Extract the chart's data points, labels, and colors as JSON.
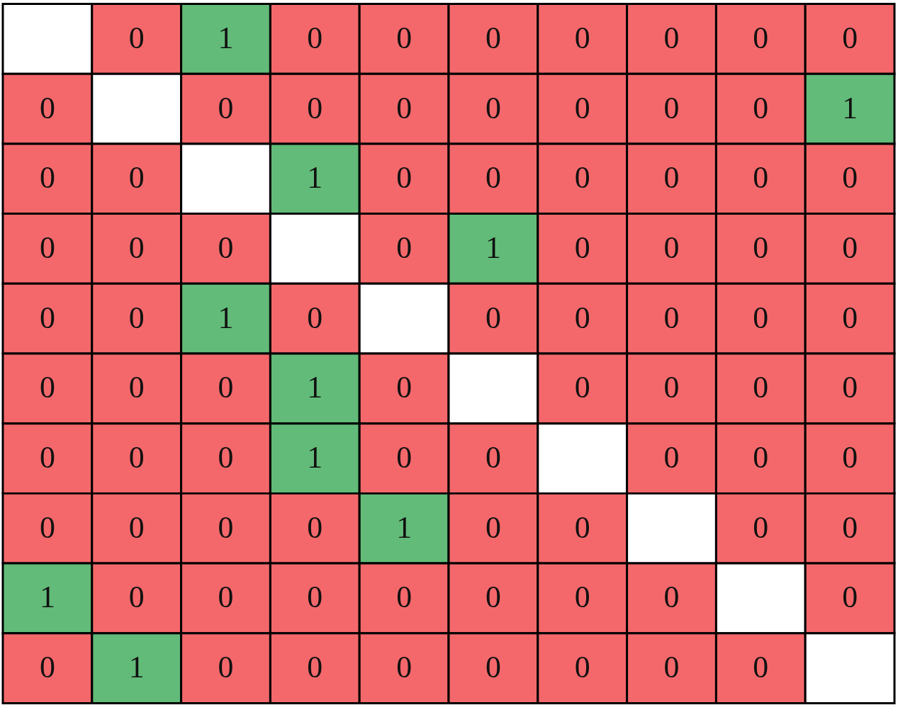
{
  "chart_data": {
    "type": "heatmap",
    "categories": [
      null,
      null,
      null,
      null,
      null,
      null,
      null,
      null,
      null,
      null
    ],
    "y_categories": [
      null,
      null,
      null,
      null,
      null,
      null,
      null,
      null,
      null,
      null
    ],
    "colors": [
      "#f4686b",
      "#62bb78"
    ],
    "data_labels": true,
    "cells": [
      [
        null,
        0,
        1,
        0,
        0,
        0,
        0,
        0,
        0,
        0
      ],
      [
        0,
        null,
        0,
        0,
        0,
        0,
        0,
        0,
        0,
        1
      ],
      [
        0,
        0,
        null,
        1,
        0,
        0,
        0,
        0,
        0,
        0
      ],
      [
        0,
        0,
        0,
        null,
        0,
        1,
        0,
        0,
        0,
        0
      ],
      [
        0,
        0,
        1,
        0,
        null,
        0,
        0,
        0,
        0,
        0
      ],
      [
        0,
        0,
        0,
        1,
        0,
        null,
        0,
        0,
        0,
        0
      ],
      [
        0,
        0,
        0,
        1,
        0,
        0,
        null,
        0,
        0,
        0
      ],
      [
        0,
        0,
        0,
        0,
        1,
        0,
        0,
        null,
        0,
        0
      ],
      [
        1,
        0,
        0,
        0,
        0,
        0,
        0,
        0,
        null,
        0
      ],
      [
        0,
        1,
        0,
        0,
        0,
        0,
        0,
        0,
        0,
        null
      ]
    ]
  }
}
